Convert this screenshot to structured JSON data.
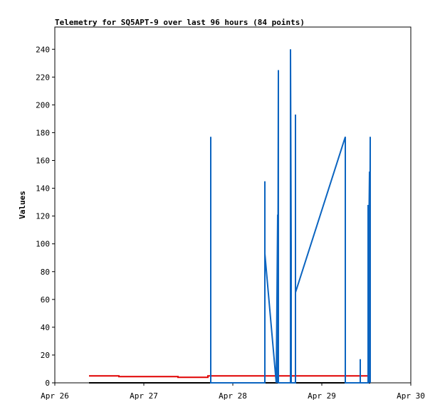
{
  "chart_data": {
    "type": "line",
    "title": "Telemetry for SQ5APT-9 over last 96 hours (84 points)",
    "y_label": "Values",
    "xlim": [
      0,
      4
    ],
    "xticks": [
      {
        "value": 0,
        "label": "Apr 26"
      },
      {
        "value": 1,
        "label": "Apr 27"
      },
      {
        "value": 2,
        "label": "Apr 28"
      },
      {
        "value": 3,
        "label": "Apr 29"
      },
      {
        "value": 4,
        "label": "Apr 30"
      }
    ],
    "ylim": [
      0,
      256
    ],
    "yticks": [
      0,
      20,
      40,
      60,
      80,
      100,
      120,
      140,
      160,
      180,
      200,
      220,
      240
    ],
    "series": [
      {
        "color": "#000000",
        "x": [
          0.384,
          3.544
        ],
        "values": [
          0,
          0
        ]
      },
      {
        "color": "#e00000",
        "x": [
          0.384,
          0.72,
          0.72,
          1.384,
          1.384,
          1.72,
          1.72,
          3.544
        ],
        "values": [
          5,
          5,
          4.5,
          4.5,
          4,
          4,
          5,
          5
        ]
      },
      {
        "color": "#0b64c0",
        "x": [
          1.752,
          1.752,
          1.752,
          2.36,
          2.36,
          2.36,
          2.488,
          2.504,
          2.504,
          2.512,
          2.512,
          2.648,
          2.648,
          2.648,
          2.656,
          2.656,
          2.704,
          2.704,
          2.704,
          3.264,
          3.264,
          3.432,
          3.432,
          3.432,
          3.52,
          3.52,
          3.52,
          3.536,
          3.536,
          3.544,
          3.544
        ],
        "values": [
          0,
          177,
          0,
          0,
          145,
          93,
          0,
          121,
          0,
          225,
          0,
          0,
          65,
          240,
          97,
          0,
          0,
          193,
          65,
          177,
          0,
          0,
          17,
          0,
          0,
          128,
          57,
          152,
          0,
          177,
          0
        ]
      }
    ]
  }
}
